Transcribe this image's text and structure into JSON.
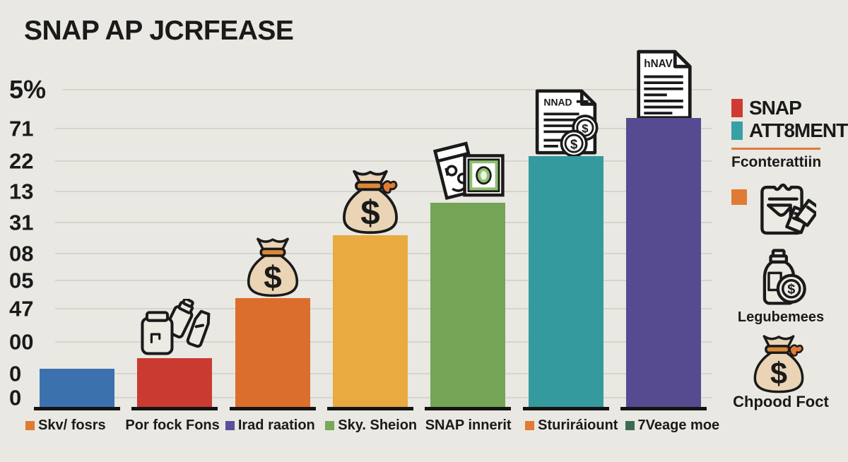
{
  "glyphs": {
    "dollar": "$"
  },
  "chart_data": {
    "type": "bar",
    "title": "SNAP AP JCRFEASE",
    "y_tick_labels": [
      "5%",
      "71",
      "22",
      "13",
      "31",
      "08",
      "05",
      "47",
      "00",
      "0",
      "0"
    ],
    "grid": true,
    "legend_position": "right",
    "categories": [
      {
        "label": "Skv/ fosrs",
        "marker_color": "#e07b35"
      },
      {
        "label": "Por fock Fons",
        "marker_color": null
      },
      {
        "label": "Irad raation",
        "marker_color": "#5a50a0"
      },
      {
        "label": "Sky. Sheion",
        "marker_color": "#7aa85a"
      },
      {
        "label": "SNAP innerit",
        "marker_color": null
      },
      {
        "label": "Sturiráiount",
        "marker_color": "#e07b35"
      },
      {
        "label": "7Veage moe",
        "marker_color": "#3e6b4f"
      }
    ],
    "bars": [
      {
        "color": "#3b72ad",
        "value_pct": 12.0,
        "icon": null
      },
      {
        "color": "#cb3a31",
        "value_pct": 15.3,
        "icon": "bottles-icon"
      },
      {
        "color": "#dc6e2d",
        "value_pct": 34.1,
        "icon": "money-bag-icon"
      },
      {
        "color": "#e9aa40",
        "value_pct": 53.9,
        "icon": "money-bag-bow-icon"
      },
      {
        "color": "#74a455",
        "value_pct": 64.1,
        "icon": "cash-icon"
      },
      {
        "color": "#349a9e",
        "value_pct": 78.7,
        "icon": "invoice-coins-icon"
      },
      {
        "color": "#564b90",
        "value_pct": 90.7,
        "icon": "document-icon"
      }
    ],
    "document_labels": {
      "invoice": "NNAD",
      "document": "hNAV"
    }
  },
  "legend": {
    "items": [
      {
        "swatch": "#cf3a32",
        "label": "SNAP"
      },
      {
        "swatch": "#36a0a5",
        "label": "ATT8MENT"
      }
    ],
    "accent_color": "#e07b39",
    "subtitle": "Fconterattiin",
    "entries": [
      {
        "swatch": "#e07b35",
        "label": ""
      },
      {
        "label": "Legubemees"
      },
      {
        "label": "Chpood Foct"
      }
    ]
  }
}
